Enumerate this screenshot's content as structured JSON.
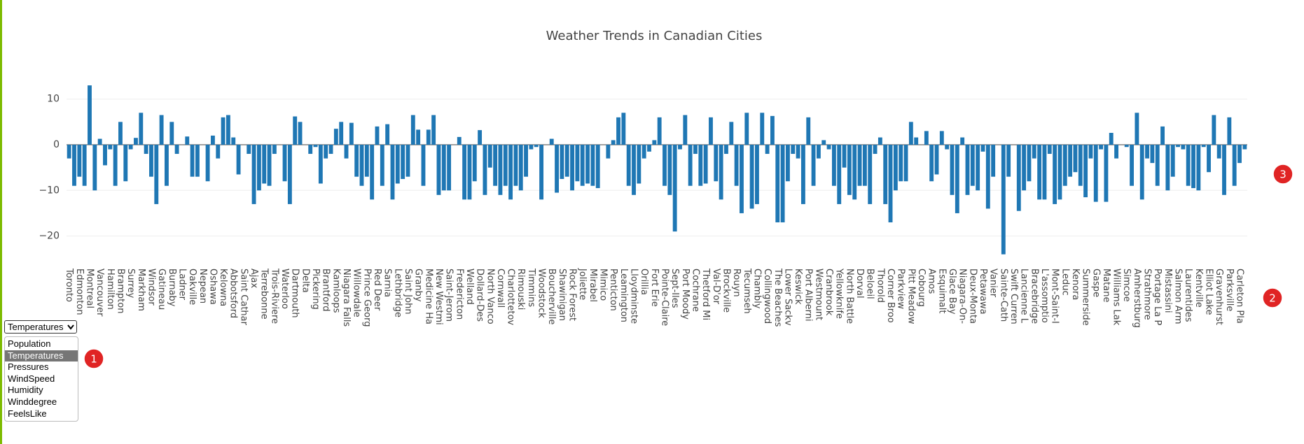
{
  "chart_data": {
    "type": "bar",
    "title": "Weather Trends in Canadian Cities",
    "color": "#1f77b4",
    "grid": true,
    "ylim": [
      -25,
      14
    ],
    "yticks": [
      {
        "value": -20,
        "label": "−20"
      },
      {
        "value": -10,
        "label": "−10"
      },
      0,
      10
    ],
    "categories": [
      "Toronto",
      null,
      "Edmonton",
      null,
      "Montreal",
      null,
      "Vancouver",
      null,
      "Hamilton",
      null,
      "Brampton",
      null,
      "Surrey",
      null,
      "Markham",
      null,
      "Windsor",
      null,
      "Gatineau",
      null,
      "Burnaby",
      null,
      "Ladner",
      null,
      "Oakville",
      null,
      "Nepean",
      null,
      "Oshawa",
      null,
      "Kelowna",
      null,
      "Abbotsford",
      null,
      "Saint Cathar",
      null,
      "Ajax",
      null,
      "Terrebonne",
      null,
      "Trois-Riviere",
      null,
      "Waterloo",
      null,
      "Dartmouth",
      null,
      "Delta",
      null,
      "Pickering",
      null,
      "Brantford",
      null,
      "Kamloops",
      null,
      "Niagara Falls",
      null,
      "Willowdale",
      null,
      "Prince Georg",
      null,
      "Red Deer",
      null,
      "Sarnia",
      null,
      "Lethbridge",
      null,
      "Saint John",
      null,
      "Granby",
      null,
      "Medicine Ha",
      null,
      "New Westmi",
      null,
      "Saint-Jerom",
      null,
      "Fredericton",
      null,
      "Welland",
      null,
      "Dollard-Des",
      null,
      "North Vanco",
      null,
      "Cornwall",
      null,
      "Charlottetov",
      null,
      "Rimouski",
      null,
      "Timmins",
      null,
      "Woodstock",
      null,
      "Boucherville",
      null,
      "Shawinigan",
      null,
      "Rock Forest",
      null,
      "Joliette",
      null,
      "Mirabel",
      null,
      "Mimico",
      null,
      "Penticton",
      null,
      "Leamington",
      null,
      "Lloydminste",
      null,
      "Orillia",
      null,
      "Fort Erie",
      null,
      "Pointe-Claire",
      null,
      "Sept-Iles",
      null,
      "Port Moody",
      null,
      "Cochrane",
      null,
      "Thetford Mi",
      null,
      "Val-D'or",
      null,
      "Brockville",
      null,
      "Rouyn",
      null,
      "Tecumseh",
      null,
      "Chambly",
      null,
      "Collingwood",
      null,
      "The Beaches",
      null,
      "Lower Sackv",
      null,
      "Keswick",
      null,
      "Port Alberni",
      null,
      "Westmount",
      null,
      "Cranbrook",
      null,
      "Yellowknife",
      null,
      "North Battle",
      null,
      "Dorval",
      null,
      "Beloeil",
      null,
      "Thorold",
      null,
      "Corner Broo",
      null,
      "Parkview",
      null,
      "Pitt Meadow",
      null,
      "Cobourg",
      null,
      "Amos",
      null,
      "Esquimalt",
      null,
      "Glace Bay",
      null,
      "Niagara-On-",
      null,
      "Deux-Monta",
      null,
      "Petawawa",
      null,
      "Vanier",
      null,
      "Sainte-Cath",
      null,
      "Swift Curren",
      null,
      "Lancienne L",
      null,
      "Bracebridge",
      null,
      "L'assomptio",
      null,
      "Mont-Saint-I",
      null,
      "Leduc",
      null,
      "Kenora",
      null,
      "Summerside",
      null,
      "Gaspe",
      null,
      "Matane",
      null,
      "Williams Lak",
      null,
      "Simcoe",
      null,
      "Amherstburg",
      null,
      "Strathmore",
      null,
      "Portage La P",
      null,
      "Mistassini",
      null,
      "Salmon Arm",
      null,
      "Laurentides",
      null,
      "Kentville",
      null,
      "Elliot Lake",
      null,
      "Gravenhurst",
      null,
      "Parksville",
      null,
      "Carleton Pla",
      null
    ],
    "values": [
      -3,
      -9,
      -7,
      -9,
      13,
      -10,
      1.3,
      -4.5,
      -1,
      -9,
      5,
      -8,
      -1,
      1.5,
      7,
      -2,
      -7,
      -13,
      6.5,
      -9,
      5,
      -2,
      0,
      1.8,
      -7,
      -7,
      0,
      -8,
      2,
      -3,
      6,
      6.5,
      1.6,
      -6.5,
      0,
      -2,
      -13,
      -10,
      -8.5,
      -9,
      -2,
      0,
      -8,
      -13,
      6.2,
      5,
      0,
      -2,
      -0.5,
      -8.5,
      -3,
      -2,
      3.5,
      5,
      -3,
      4.8,
      -7,
      -9,
      -7,
      -12,
      4,
      -9,
      4.5,
      -12,
      -8.5,
      -7.5,
      -7,
      6.5,
      3.3,
      -9,
      3.3,
      6.5,
      -11,
      -10,
      -10,
      0,
      1.7,
      -12,
      -12,
      -8,
      3.2,
      -11,
      -5,
      -9,
      -11,
      -9,
      -12,
      -9,
      -10,
      -7,
      -1,
      -0.5,
      -12,
      0,
      1.3,
      -10.5,
      -7.5,
      -7,
      -10,
      -8,
      -9,
      -8.5,
      -9,
      -9.5,
      0,
      -3,
      1,
      6,
      7,
      -9,
      -11,
      -8.5,
      -3,
      -1.5,
      1,
      6,
      -9,
      -11,
      -19,
      -1,
      6.5,
      -9,
      -2,
      -9,
      -8.5,
      6,
      -8,
      -12,
      -2,
      5,
      -9,
      -15,
      7,
      -14,
      -13,
      7,
      -2,
      6.3,
      -17,
      -17,
      -8,
      -2,
      -3,
      -13,
      6,
      -9,
      -3,
      1,
      -1,
      -9,
      -13,
      -5,
      -11,
      -12,
      -9,
      -9,
      -13,
      -2,
      1.6,
      -13,
      -17,
      -10,
      -8,
      -8,
      5,
      1.6,
      0,
      3,
      -8,
      -6.5,
      3,
      -1,
      -11,
      -15,
      1.6,
      -11,
      -9,
      -10,
      -1.5,
      -14,
      -7,
      0,
      -24,
      -7,
      0,
      -14.5,
      -10,
      -8,
      -3,
      -12,
      -12,
      -2,
      -13,
      -12,
      -9,
      -7,
      -6,
      -9,
      -11.5,
      -3,
      -12.5,
      -1,
      -12.5,
      2.6,
      -3,
      0,
      -0.5,
      -9,
      7,
      -12,
      -3,
      -4,
      -9,
      4,
      -10,
      -7,
      -0.5,
      -1,
      -9,
      -9.5,
      -10,
      -0.5,
      -6,
      6.5,
      -3,
      -11,
      6,
      -9,
      -4,
      -1
    ]
  },
  "dropdown": {
    "selected": "Temperatures",
    "options": [
      "Population",
      "Temperatures",
      "Pressures",
      "WindSpeed",
      "Humidity",
      "Winddegree",
      "FeelsLike"
    ]
  },
  "markers": [
    "1",
    "2",
    "3"
  ]
}
